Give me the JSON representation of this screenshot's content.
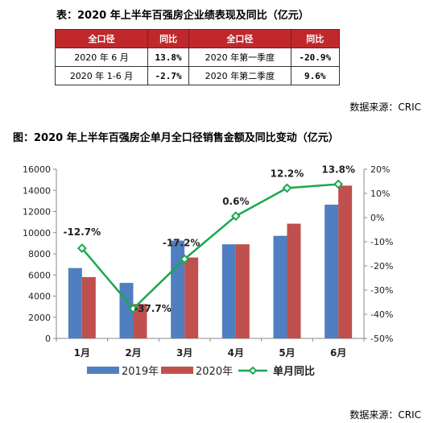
{
  "table": {
    "title": "表：2020 年上半年百强房企业绩表现及同比（亿元）",
    "headers": [
      "全口径",
      "同比",
      "全口径",
      "同比"
    ],
    "rows": [
      [
        "2020 年 6 月",
        "13.8%",
        "2020 年第一季度",
        "-20.9%"
      ],
      [
        "2020 年 1-6 月",
        "-2.7%",
        "2020 年第二季度",
        "9.6%"
      ]
    ]
  },
  "source_top": "数据来源：CRIC",
  "source_bottom": "数据来源：CRIC",
  "chart_data": {
    "type": "bar",
    "title": "图：2020 年上半年百强房企单月全口径销售金额及同比变动（亿元）",
    "categories": [
      "1月",
      "2月",
      "3月",
      "4月",
      "5月",
      "6月"
    ],
    "series": [
      {
        "name": "2019年",
        "type": "bar",
        "axis": "left",
        "color": "#4f7fc0",
        "values": [
          6650,
          5250,
          9250,
          8900,
          9700,
          12650
        ]
      },
      {
        "name": "2020年",
        "type": "bar",
        "axis": "left",
        "color": "#c0504d",
        "values": [
          5800,
          3250,
          7650,
          8900,
          10850,
          14450
        ]
      },
      {
        "name": "单月同比",
        "type": "line",
        "axis": "right",
        "color": "#1aa84e",
        "unit": "%",
        "values": [
          -12.7,
          -37.7,
          -17.2,
          0.6,
          12.2,
          13.8
        ]
      }
    ],
    "data_labels": [
      "-12.7%",
      "-37.7%",
      "-17.2%",
      "0.6%",
      "12.2%",
      "13.8%"
    ],
    "y_left": {
      "min": 0,
      "max": 16000,
      "step": 2000,
      "ticks": [
        "0",
        "2000",
        "4000",
        "6000",
        "8000",
        "10000",
        "12000",
        "14000",
        "16000"
      ]
    },
    "y_right": {
      "min": -50,
      "max": 20,
      "step": 10,
      "ticks": [
        "-50%",
        "-40%",
        "-30%",
        "-20%",
        "-10%",
        "0%",
        "10%",
        "20%"
      ]
    },
    "legend": {
      "position": "bottom"
    },
    "grid": false
  }
}
